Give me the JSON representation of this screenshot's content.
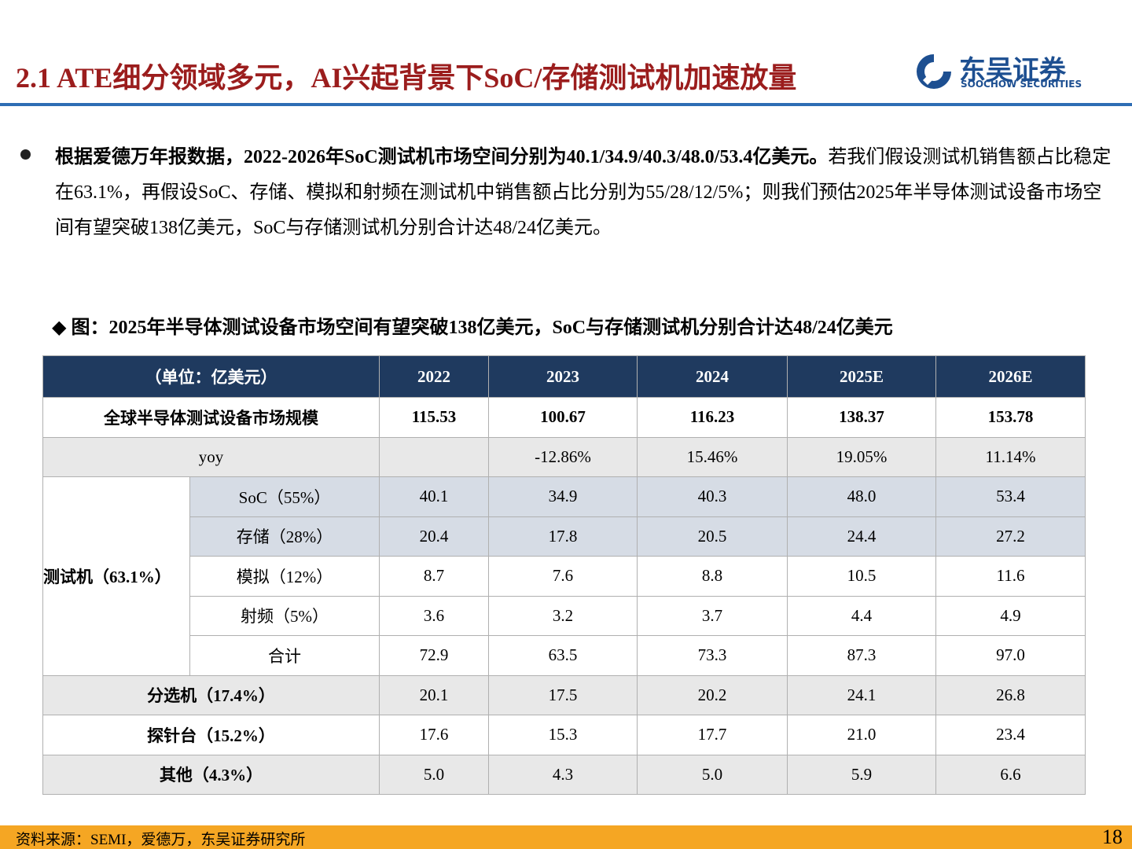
{
  "header": {
    "title": "2.1 ATE细分领域多元，AI兴起背景下SoC/存储测试机加速放量",
    "logo_cn": "东吴证券",
    "logo_en": "SOOCHOW SECURITIES"
  },
  "bullet": {
    "bold": "根据爱德万年报数据，2022-2026年SoC测试机市场空间分别为40.1/34.9/40.3/48.0/53.4亿美元。",
    "text": "若我们假设测试机销售额占比稳定在63.1%，再假设SoC、存储、模拟和射频在测试机中销售额占比分别为55/28/12/5%；则我们预估2025年半导体测试设备市场空间有望突破138亿美元，SoC与存储测试机分别合计达48/24亿美元。"
  },
  "figure_caption": "◆ 图：2025年半导体测试设备市场空间有望突破138亿美元，SoC与存储测试机分别合计达48/24亿美元",
  "table": {
    "columns": [
      "（单位：亿美元）",
      "2022",
      "2023",
      "2024",
      "2025E",
      "2026E"
    ],
    "rows": [
      {
        "label": "全球半导体测试设备市场规模",
        "values": [
          "115.53",
          "100.67",
          "116.23",
          "138.37",
          "153.78"
        ]
      },
      {
        "label": "yoy",
        "values": [
          null,
          "-12.86%",
          "15.46%",
          "19.05%",
          "11.14%"
        ]
      },
      {
        "group": "测试机（63.1%）",
        "rows": [
          {
            "label": "SoC（55%）",
            "values": [
              "40.1",
              "34.9",
              "40.3",
              "48.0",
              "53.4"
            ]
          },
          {
            "label": "存储（28%）",
            "values": [
              "20.4",
              "17.8",
              "20.5",
              "24.4",
              "27.2"
            ]
          },
          {
            "label": "模拟（12%）",
            "values": [
              "8.7",
              "7.6",
              "8.8",
              "10.5",
              "11.6"
            ]
          },
          {
            "label": "射频（5%）",
            "values": [
              "3.6",
              "3.2",
              "3.7",
              "4.4",
              "4.9"
            ]
          },
          {
            "label": "合计",
            "values": [
              "72.9",
              "63.5",
              "73.3",
              "87.3",
              "97.0"
            ]
          }
        ]
      },
      {
        "label": "分选机（17.4%）",
        "values": [
          "20.1",
          "17.5",
          "20.2",
          "24.1",
          "26.8"
        ]
      },
      {
        "label": "探针台（15.2%）",
        "values": [
          "17.6",
          "15.3",
          "17.7",
          "21.0",
          "23.4"
        ]
      },
      {
        "label": "其他（4.3%）",
        "values": [
          "5.0",
          "4.3",
          "5.0",
          "5.9",
          "6.6"
        ]
      }
    ]
  },
  "footer": {
    "source": "资料来源：SEMI，爱德万，东吴证券研究所",
    "page": "18"
  }
}
